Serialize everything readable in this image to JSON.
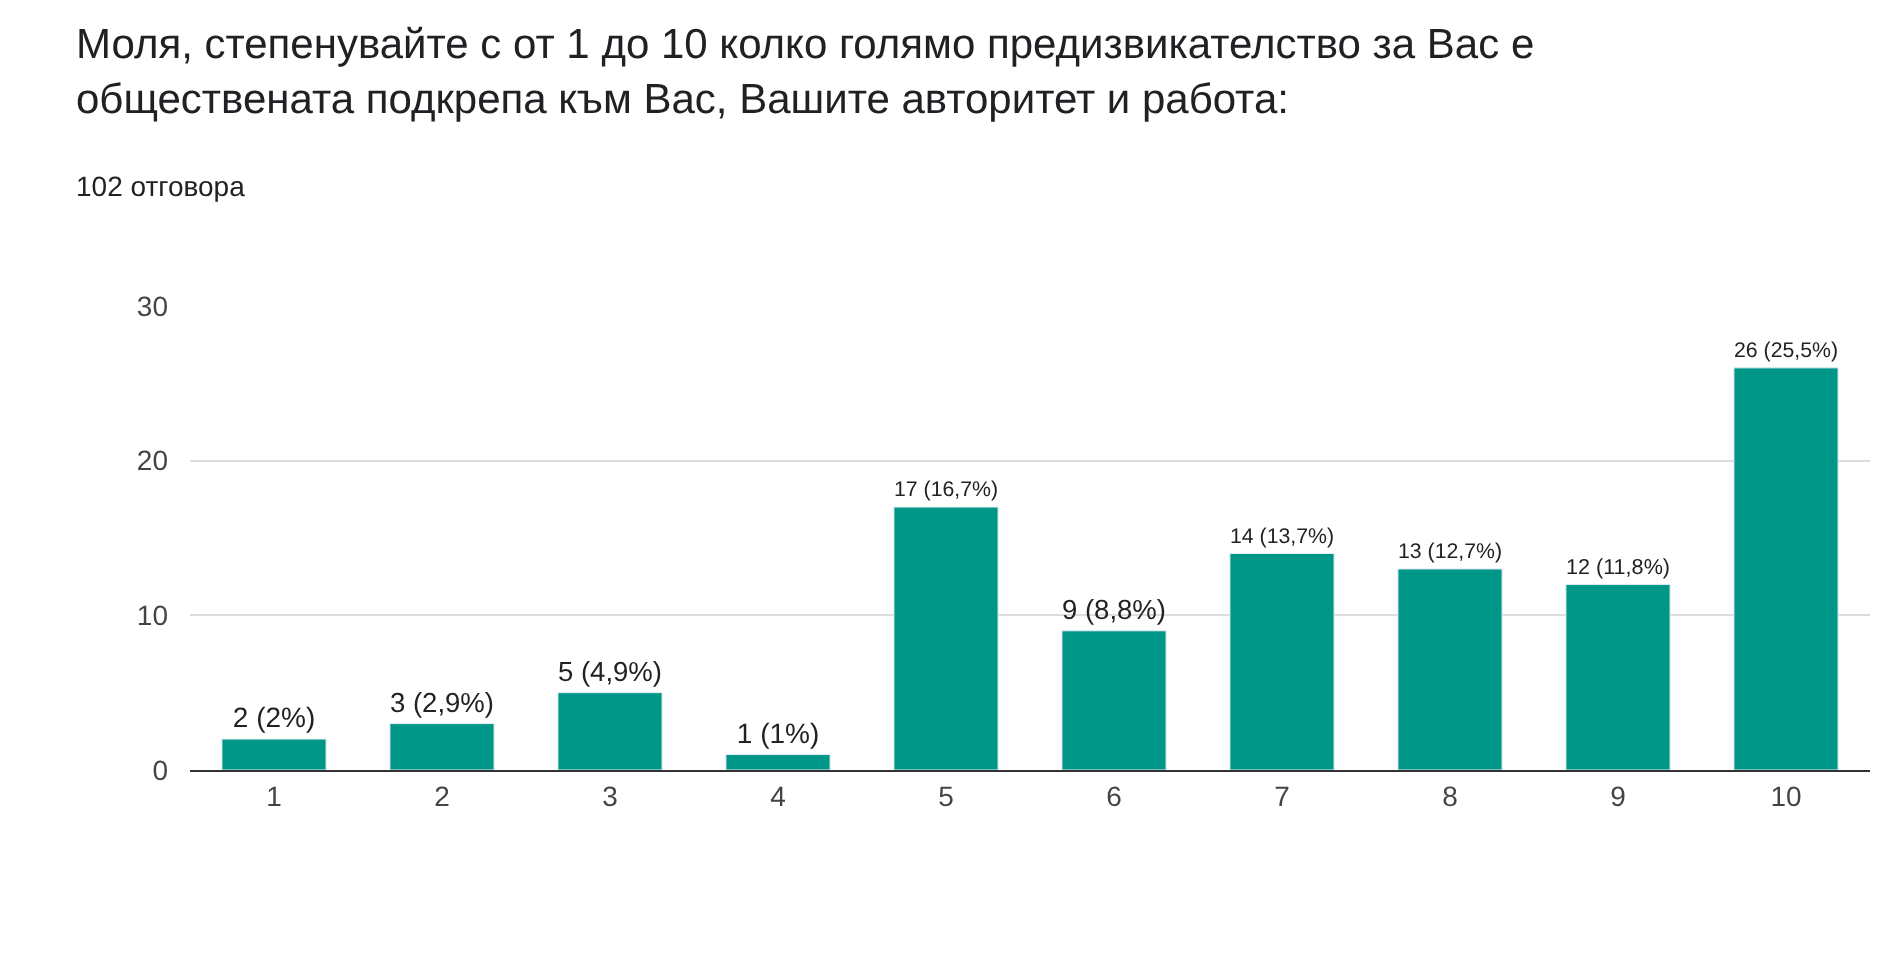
{
  "chart_data": {
    "type": "bar",
    "title": "Моля, степенувайте с от 1 до 10 колко голямо предизвикателство за Вас е\nобществената подкрепа към Вас, Вашите авторитет и работа:",
    "subtitle": "102 отговора",
    "categories": [
      "1",
      "2",
      "3",
      "4",
      "5",
      "6",
      "7",
      "8",
      "9",
      "10"
    ],
    "values": [
      2,
      3,
      5,
      1,
      17,
      9,
      14,
      13,
      12,
      26
    ],
    "value_labels": [
      "2 (2%)",
      "3 (2,9%)",
      "5 (4,9%)",
      "1 (1%)",
      "17 (16,7%)",
      "9 (8,8%)",
      "14 (13,7%)",
      "13 (12,7%)",
      "12 (11,8%)",
      "26 (25,5%)"
    ],
    "color": "#009688",
    "ylim": [
      0,
      30
    ],
    "yticks": [
      0,
      10,
      20,
      30
    ],
    "grid": "y",
    "legend": false
  }
}
